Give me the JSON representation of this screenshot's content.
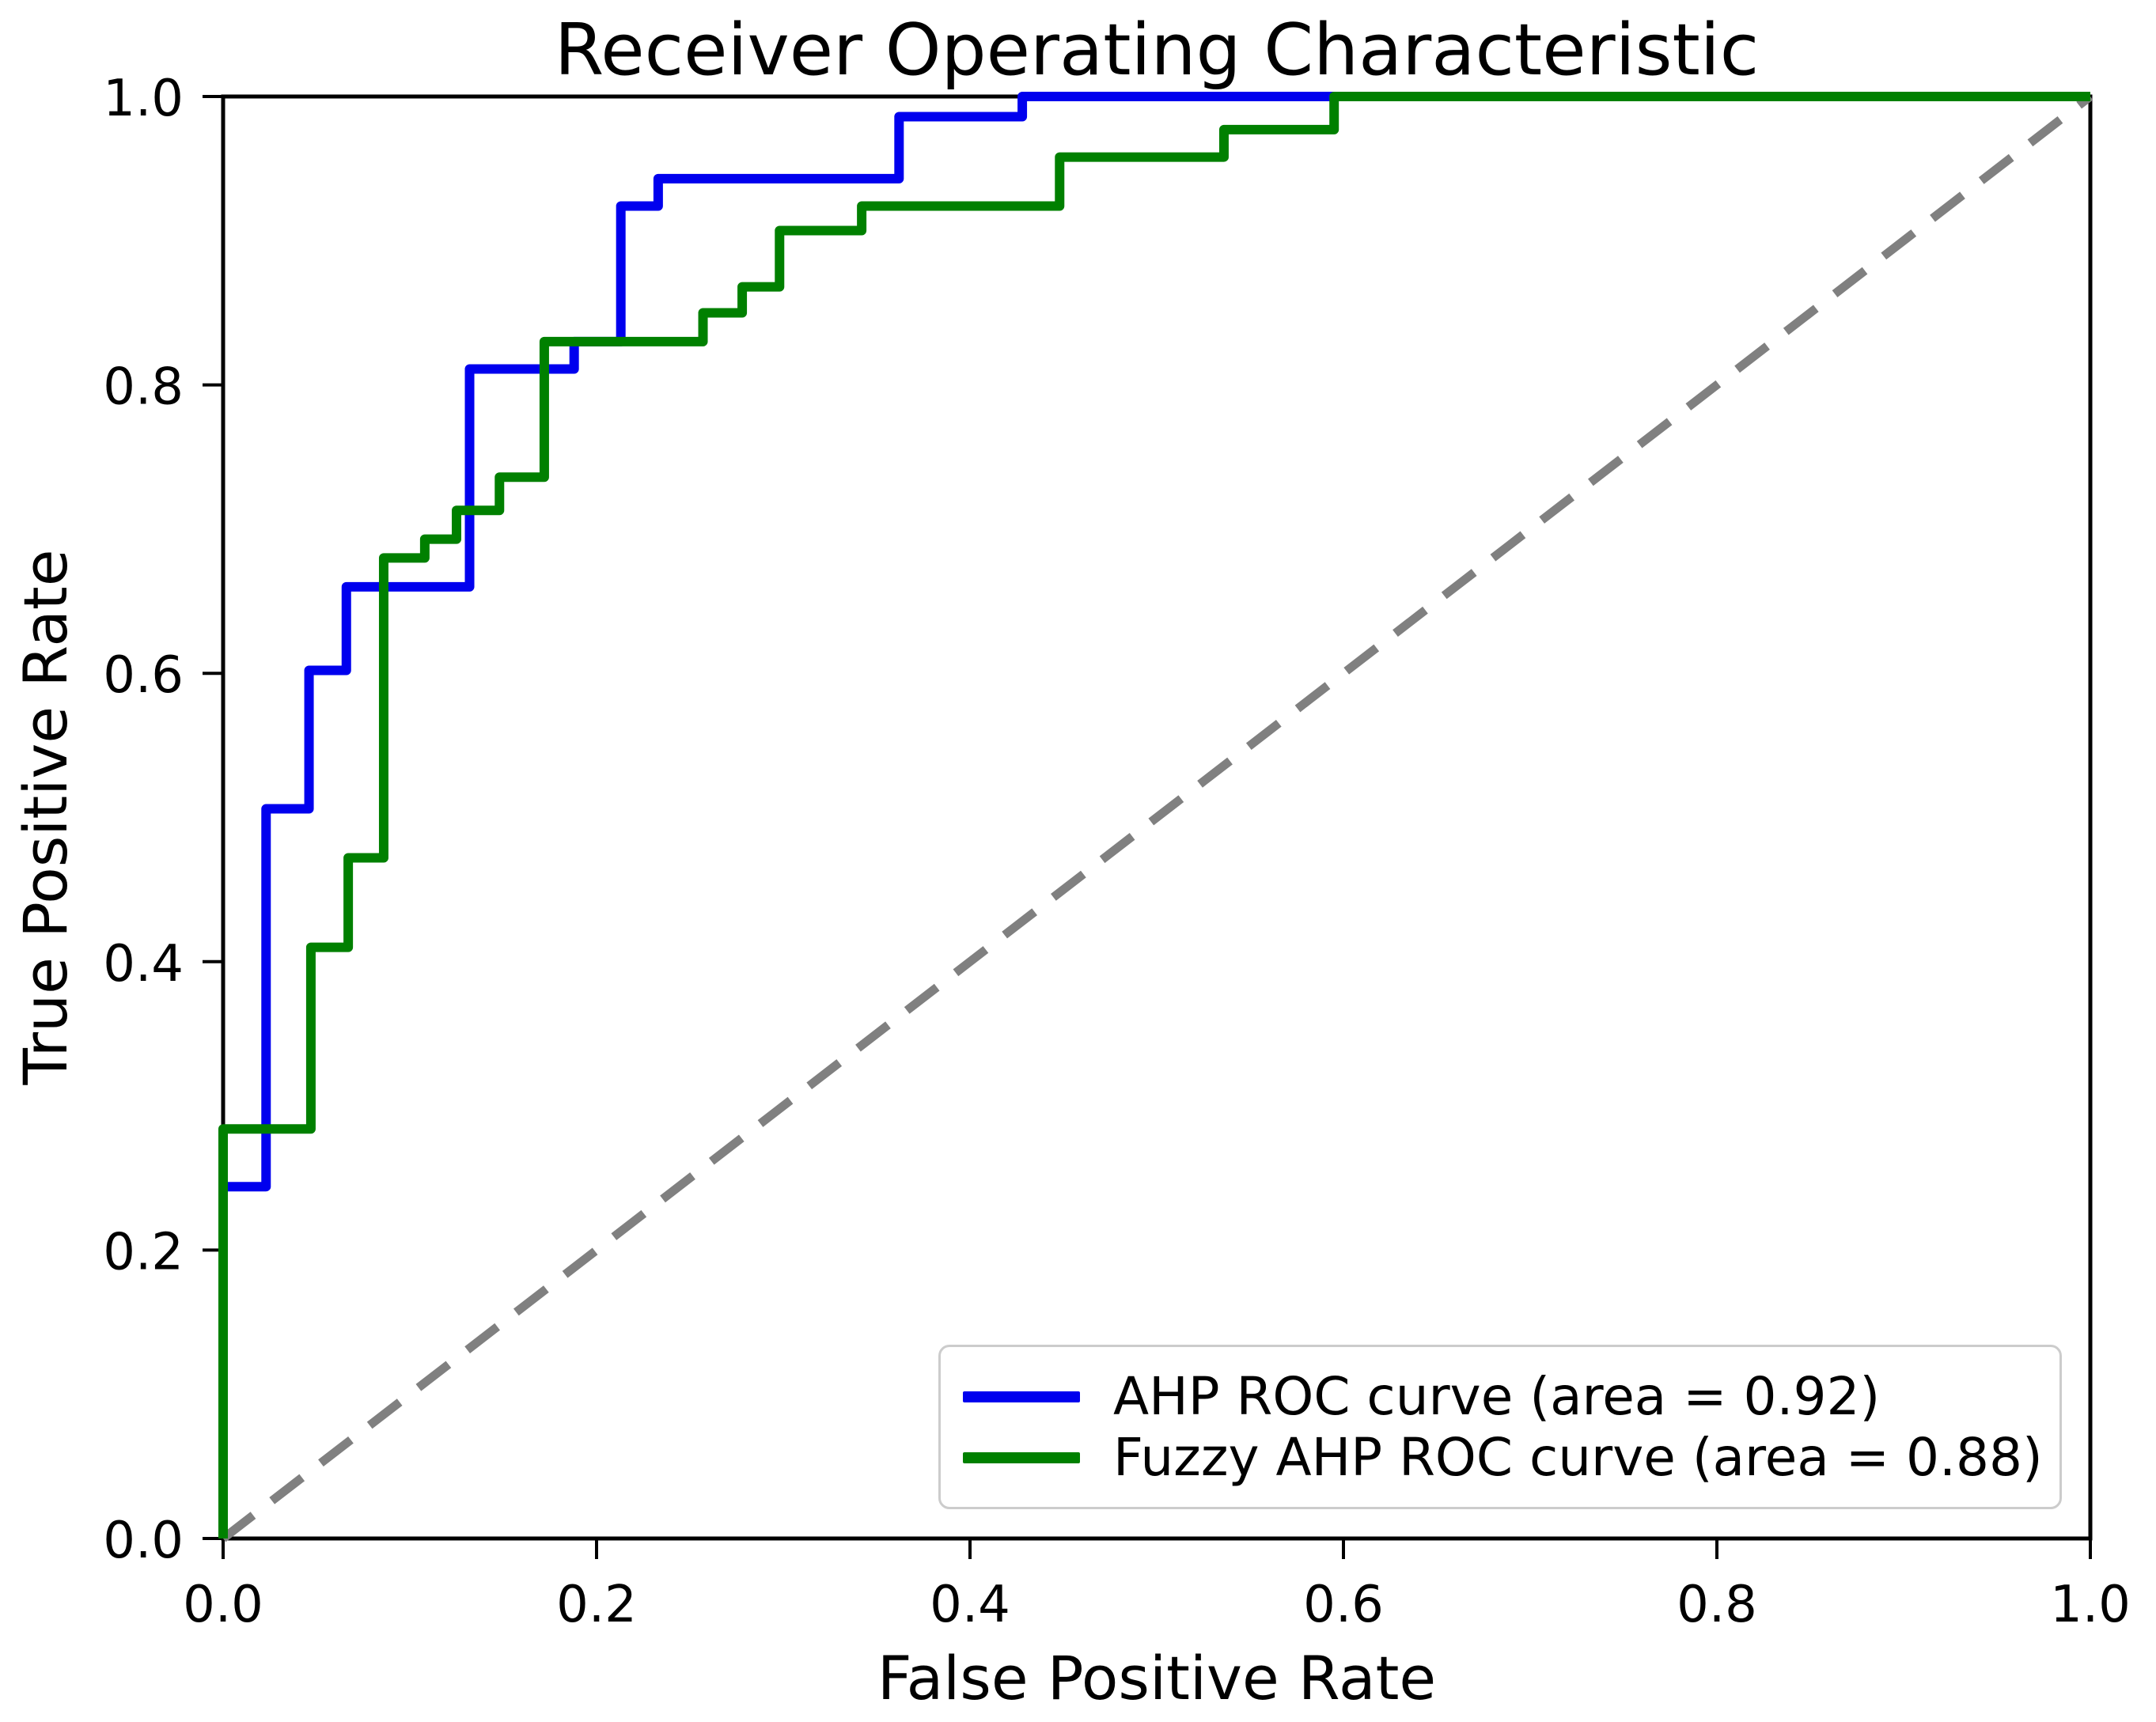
{
  "chart_data": {
    "type": "line",
    "subtype": "roc-step-curves",
    "title": "Receiver Operating Characteristic",
    "xlabel": "False Positive Rate",
    "ylabel": "True Positive Rate",
    "xlim": [
      0.0,
      1.0
    ],
    "ylim": [
      0.0,
      1.0
    ],
    "grid": false,
    "x_tick_labels": [
      "0.0",
      "0.2",
      "0.4",
      "0.6",
      "0.8",
      "1.0"
    ],
    "y_tick_labels": [
      "0.0",
      "0.2",
      "0.4",
      "0.6",
      "0.8",
      "1.0"
    ],
    "axes_color": "#000000",
    "legend_position": "lower right",
    "reference_line": {
      "name": "chance diagonal",
      "style": "dashed",
      "color": "#808080",
      "points": [
        [
          0,
          0
        ],
        [
          1,
          1
        ]
      ]
    },
    "series": [
      {
        "name": "AHP",
        "label": "AHP ROC curve (area = 0.92)",
        "color": "#0000ee",
        "area": 0.92,
        "points": [
          [
            0,
            0
          ],
          [
            0,
            0.244
          ],
          [
            0.023,
            0.244
          ],
          [
            0.023,
            0.506
          ],
          [
            0.046,
            0.506
          ],
          [
            0.046,
            0.602
          ],
          [
            0.066,
            0.602
          ],
          [
            0.066,
            0.66
          ],
          [
            0.132,
            0.66
          ],
          [
            0.132,
            0.811
          ],
          [
            0.188,
            0.811
          ],
          [
            0.188,
            0.83
          ],
          [
            0.213,
            0.83
          ],
          [
            0.213,
            0.924
          ],
          [
            0.233,
            0.924
          ],
          [
            0.233,
            0.943
          ],
          [
            0.362,
            0.943
          ],
          [
            0.362,
            0.986
          ],
          [
            0.428,
            0.986
          ],
          [
            0.428,
            1.0
          ],
          [
            1.0,
            1.0
          ]
        ]
      },
      {
        "name": "Fuzzy AHP",
        "label": "Fuzzy AHP ROC curve (area = 0.88)",
        "color": "#008000",
        "area": 0.88,
        "points": [
          [
            0,
            0
          ],
          [
            0,
            0.284
          ],
          [
            0.047,
            0.284
          ],
          [
            0.047,
            0.41
          ],
          [
            0.067,
            0.41
          ],
          [
            0.067,
            0.472
          ],
          [
            0.086,
            0.472
          ],
          [
            0.086,
            0.68
          ],
          [
            0.108,
            0.68
          ],
          [
            0.108,
            0.693
          ],
          [
            0.125,
            0.693
          ],
          [
            0.125,
            0.713
          ],
          [
            0.148,
            0.713
          ],
          [
            0.148,
            0.736
          ],
          [
            0.172,
            0.736
          ],
          [
            0.172,
            0.83
          ],
          [
            0.257,
            0.83
          ],
          [
            0.257,
            0.85
          ],
          [
            0.278,
            0.85
          ],
          [
            0.278,
            0.868
          ],
          [
            0.298,
            0.868
          ],
          [
            0.298,
            0.907
          ],
          [
            0.342,
            0.907
          ],
          [
            0.342,
            0.924
          ],
          [
            0.448,
            0.924
          ],
          [
            0.448,
            0.958
          ],
          [
            0.536,
            0.958
          ],
          [
            0.536,
            0.977
          ],
          [
            0.595,
            0.977
          ],
          [
            0.595,
            1.0
          ],
          [
            1.0,
            1.0
          ]
        ]
      }
    ]
  }
}
